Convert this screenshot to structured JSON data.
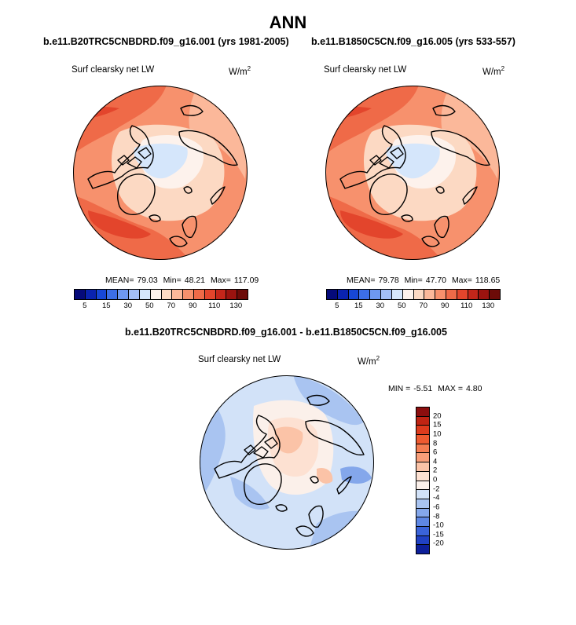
{
  "title": "ANN",
  "panels": [
    {
      "case": "b.e11.B20TRC5CNBDRD.f09_g16.001 (yrs 1981-2005)",
      "variable": "Surf clearsky net LW",
      "units_base": "W/m",
      "units_exp": "2",
      "stats": [
        "MEAN=",
        "79.03",
        "Min=",
        "48.21",
        "Max=",
        "117.09"
      ]
    },
    {
      "case": "b.e11.B1850C5CN.f09_g16.005 (yrs 533-557)",
      "variable": "Surf clearsky net LW",
      "units_base": "W/m",
      "units_exp": "2",
      "stats": [
        "MEAN=",
        "79.78",
        "Min=",
        "47.70",
        "Max=",
        "118.65"
      ]
    },
    {
      "case": "b.e11.B20TRC5CNBDRD.f09_g16.001 - b.e11.B1850C5CN.f09_g16.005",
      "variable": "Surf clearsky net LW",
      "units_base": "W/m",
      "units_exp": "2",
      "stats": [
        "MIN =",
        "-5.51",
        "MAX =",
        "4.80"
      ]
    }
  ],
  "chart_data": [
    {
      "type": "heatmap",
      "projection": "north polar stereographic",
      "title": "b.e11.B20TRC5CNBDRD.f09_g16.001 (yrs 1981-2005)",
      "variable": "Surf clearsky net LW",
      "units": "W/m2",
      "mean": 79.03,
      "min": 48.21,
      "max": 117.09,
      "levels": [
        5,
        10,
        15,
        20,
        30,
        40,
        50,
        60,
        70,
        80,
        90,
        100,
        110,
        120,
        130
      ],
      "tick_labels": [
        "5",
        "15",
        "30",
        "50",
        "70",
        "90",
        "110",
        "130"
      ],
      "colors": [
        "#050a7a",
        "#0a23b0",
        "#1747d6",
        "#3c6ee6",
        "#6e98f0",
        "#a3bff6",
        "#d5e6fb",
        "#fdf2ec",
        "#fcd9c3",
        "#fbb89a",
        "#f7916d",
        "#ef6a48",
        "#e3452c",
        "#c4261a",
        "#9b130f",
        "#6d0b08"
      ]
    },
    {
      "type": "heatmap",
      "projection": "north polar stereographic",
      "title": "b.e11.B1850C5CN.f09_g16.005 (yrs 533-557)",
      "variable": "Surf clearsky net LW",
      "units": "W/m2",
      "mean": 79.78,
      "min": 47.7,
      "max": 118.65,
      "levels": [
        5,
        10,
        15,
        20,
        30,
        40,
        50,
        60,
        70,
        80,
        90,
        100,
        110,
        120,
        130
      ],
      "tick_labels": [
        "5",
        "15",
        "30",
        "50",
        "70",
        "90",
        "110",
        "130"
      ],
      "colors": [
        "#050a7a",
        "#0a23b0",
        "#1747d6",
        "#3c6ee6",
        "#6e98f0",
        "#a3bff6",
        "#d5e6fb",
        "#fdf2ec",
        "#fcd9c3",
        "#fbb89a",
        "#f7916d",
        "#ef6a48",
        "#e3452c",
        "#c4261a",
        "#9b130f",
        "#6d0b08"
      ]
    },
    {
      "type": "heatmap",
      "projection": "north polar stereographic",
      "title": "b.e11.B20TRC5CNBDRD.f09_g16.001 - b.e11.B1850C5CN.f09_g16.005",
      "variable": "Surf clearsky net LW",
      "units": "W/m2",
      "min": -5.51,
      "max": 4.8,
      "levels": [
        20,
        15,
        10,
        8,
        6,
        4,
        2,
        0,
        -2,
        -4,
        -6,
        -8,
        -10,
        -15,
        -20
      ],
      "tick_labels": [
        "20",
        "15",
        "10",
        "8",
        "6",
        "4",
        "2",
        "0",
        "-2",
        "-4",
        "-6",
        "-8",
        "-10",
        "-15",
        "-20"
      ],
      "colors": [
        "#8c0e0e",
        "#bf2413",
        "#dd3b1d",
        "#ee5a30",
        "#f47d52",
        "#f89e79",
        "#fbc3a7",
        "#fde1d2",
        "#fbf0ea",
        "#d2e2f8",
        "#a9c4f1",
        "#84a7eb",
        "#5e87e4",
        "#3a63d9",
        "#2041c4",
        "#0d1f9a"
      ]
    }
  ]
}
